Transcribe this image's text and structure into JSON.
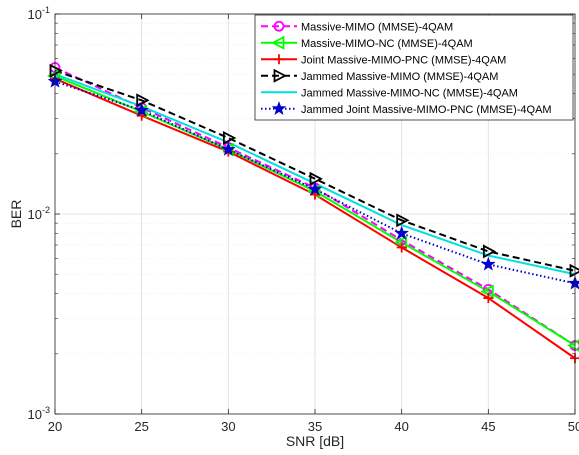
{
  "chart_data": {
    "type": "line",
    "xlabel": "SNR [dB]",
    "ylabel": "BER",
    "x": [
      20,
      25,
      30,
      35,
      40,
      45,
      50
    ],
    "xlim": [
      20,
      50
    ],
    "ylim": [
      0.001,
      0.1
    ],
    "yscale": "log",
    "grid": true,
    "minor_grid": true,
    "legend_position": "top-right",
    "x_ticks": [
      "20",
      "25",
      "30",
      "35",
      "40",
      "45",
      "50"
    ],
    "y_ticks": [
      {
        "value": 0.001,
        "base": "10",
        "exp": "-3"
      },
      {
        "value": 0.01,
        "base": "10",
        "exp": "-2"
      },
      {
        "value": 0.1,
        "base": "10",
        "exp": "-1"
      }
    ],
    "series": [
      {
        "name": "Massive-MIMO (MMSE)-4QAM",
        "values": [
          0.054,
          0.034,
          0.0215,
          0.0135,
          0.0074,
          0.0042,
          0.0022
        ],
        "color": "#ff00ff",
        "dash": "dashed",
        "marker": "circle"
      },
      {
        "name": "Massive-MIMO-NC (MMSE)-4QAM",
        "values": [
          0.049,
          0.0325,
          0.021,
          0.013,
          0.0072,
          0.0041,
          0.0022
        ],
        "color": "#00ff00",
        "dash": "solid",
        "marker": "triangle-left"
      },
      {
        "name": "Joint Massive-MIMO-PNC (MMSE)-4QAM",
        "values": [
          0.0475,
          0.031,
          0.0205,
          0.0125,
          0.0068,
          0.0038,
          0.0019
        ],
        "color": "#ff0000",
        "dash": "solid",
        "marker": "plus"
      },
      {
        "name": "Jammed Massive-MIMO (MMSE)-4QAM",
        "values": [
          0.052,
          0.037,
          0.024,
          0.015,
          0.0093,
          0.0065,
          0.0052
        ],
        "color": "#000000",
        "dash": "dashed",
        "marker": "triangle-right"
      },
      {
        "name": "Jammed Massive-MIMO-NC (MMSE)-4QAM",
        "values": [
          0.05,
          0.0345,
          0.0228,
          0.0142,
          0.0088,
          0.0062,
          0.005
        ],
        "color": "#00e0e0",
        "dash": "solid",
        "marker": "none"
      },
      {
        "name": "Jammed Joint Massive-MIMO-PNC (MMSE)-4QAM",
        "values": [
          0.046,
          0.033,
          0.021,
          0.0133,
          0.008,
          0.0056,
          0.0045
        ],
        "color": "#0000cc",
        "dash": "dotted",
        "marker": "star"
      }
    ]
  }
}
